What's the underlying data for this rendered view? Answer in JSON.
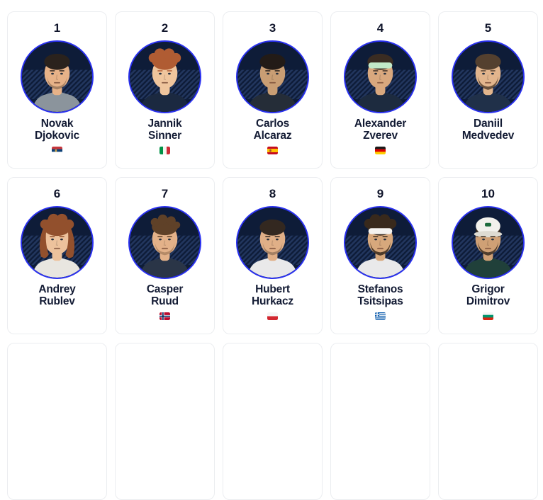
{
  "colors": {
    "page_bg": "#ffffff",
    "card_bg": "#ffffff",
    "card_border": "#ebedf0",
    "rank_color": "#10152b",
    "name_color": "#131b34",
    "ring": "#2a31f0",
    "avatar_bg": "#0e1c38",
    "avatar_stripe": "#22365e"
  },
  "players": [
    {
      "rank": "1",
      "first_name": "Novak",
      "last_name": "Djokovic",
      "country": "Serbia",
      "flag": {
        "name": "serbia-flag",
        "type": "h",
        "stripes": [
          "#c6363c",
          "#0c4076",
          "#ffffff"
        ],
        "emblem": "#c8a24a",
        "emblem_x": 4.6
      },
      "avatar": {
        "skin": "#e7b288",
        "hair": "#2a221d",
        "style": "short",
        "beard": "stubble",
        "shirt": "#8b949c"
      }
    },
    {
      "rank": "2",
      "first_name": "Jannik",
      "last_name": "Sinner",
      "country": "Italy",
      "flag": {
        "name": "italy-flag",
        "type": "v",
        "stripes": [
          "#009246",
          "#f4f5f0",
          "#ce2b37"
        ]
      },
      "avatar": {
        "skin": "#efc59d",
        "hair": "#b05c33",
        "style": "curly",
        "beard": "none",
        "shirt": "#1b2940"
      }
    },
    {
      "rank": "3",
      "first_name": "Carlos",
      "last_name": "Alcaraz",
      "country": "Spain",
      "flag": {
        "name": "spain-flag",
        "type": "h",
        "stripes": [
          "#c60b1e",
          "#ffc400",
          "#c60b1e"
        ],
        "weights": [
          1,
          1.6,
          1
        ],
        "emblem": "#a0522d",
        "emblem_x": 3.2
      },
      "avatar": {
        "skin": "#c99e74",
        "hair": "#221b17",
        "style": "short",
        "beard": "none",
        "shirt": "#252d38"
      }
    },
    {
      "rank": "4",
      "first_name": "Alexander",
      "last_name": "Zverev",
      "country": "Germany",
      "flag": {
        "name": "germany-flag",
        "type": "h",
        "stripes": [
          "#1a1a1a",
          "#dd0000",
          "#ffce00"
        ]
      },
      "avatar": {
        "skin": "#d9a87e",
        "hair": "#3a2c22",
        "style": "short",
        "headband": "#c2e9c8",
        "beard": "none",
        "shirt": "#1d2b3f"
      }
    },
    {
      "rank": "5",
      "first_name": "Daniil",
      "last_name": "Medvedev",
      "country": "",
      "flag": null,
      "avatar": {
        "skin": "#e2b58d",
        "hair": "#54402f",
        "style": "short",
        "beard": "full",
        "shirt": "#203049"
      }
    },
    {
      "rank": "6",
      "first_name": "Andrey",
      "last_name": "Rublev",
      "country": "",
      "flag": null,
      "avatar": {
        "skin": "#edc29c",
        "hair": "#92502d",
        "style": "long",
        "beard": "none",
        "shirt": "#e8e6e0"
      }
    },
    {
      "rank": "7",
      "first_name": "Casper",
      "last_name": "Ruud",
      "country": "Norway",
      "flag": {
        "name": "norway-flag",
        "type": "nordic",
        "bg": "#ba0c2f",
        "cross_outer": "#ffffff",
        "cross_inner": "#00205b"
      },
      "avatar": {
        "skin": "#e3b189",
        "hair": "#5f4128",
        "style": "wavy",
        "beard": "stubble",
        "shirt": "#2a3547"
      }
    },
    {
      "rank": "8",
      "first_name": "Hubert",
      "last_name": "Hurkacz",
      "country": "Poland",
      "flag": {
        "name": "poland-flag",
        "type": "h",
        "stripes": [
          "#f5f5f5",
          "#d22730"
        ]
      },
      "avatar": {
        "skin": "#e0af87",
        "hair": "#332820",
        "style": "short",
        "beard": "stubble",
        "shirt": "#e9e9ea"
      }
    },
    {
      "rank": "9",
      "first_name": "Stefanos",
      "last_name": "Tsitsipas",
      "country": "Greece",
      "flag": {
        "name": "greece-flag",
        "type": "greece",
        "blue": "#0d5eaf",
        "white": "#f5f6f8"
      },
      "avatar": {
        "skin": "#d7a87c",
        "hair": "#38291c",
        "style": "curly",
        "headband": "#f4f3f0",
        "beard": "full",
        "shirt": "#e9e9ea"
      }
    },
    {
      "rank": "10",
      "first_name": "Grigor",
      "last_name": "Dimitrov",
      "country": "Bulgaria",
      "flag": {
        "name": "bulgaria-flag",
        "type": "h",
        "stripes": [
          "#f5f5f5",
          "#00966e",
          "#d62612"
        ]
      },
      "avatar": {
        "skin": "#cfa075",
        "hair": "#3a2d22",
        "style": "cap",
        "cap": "#f2f1ec",
        "cap_logo": "#1d6b3c",
        "beard": "full",
        "shirt": "#20403a"
      }
    }
  ],
  "next_row": {
    "placeholder_count": 5
  }
}
